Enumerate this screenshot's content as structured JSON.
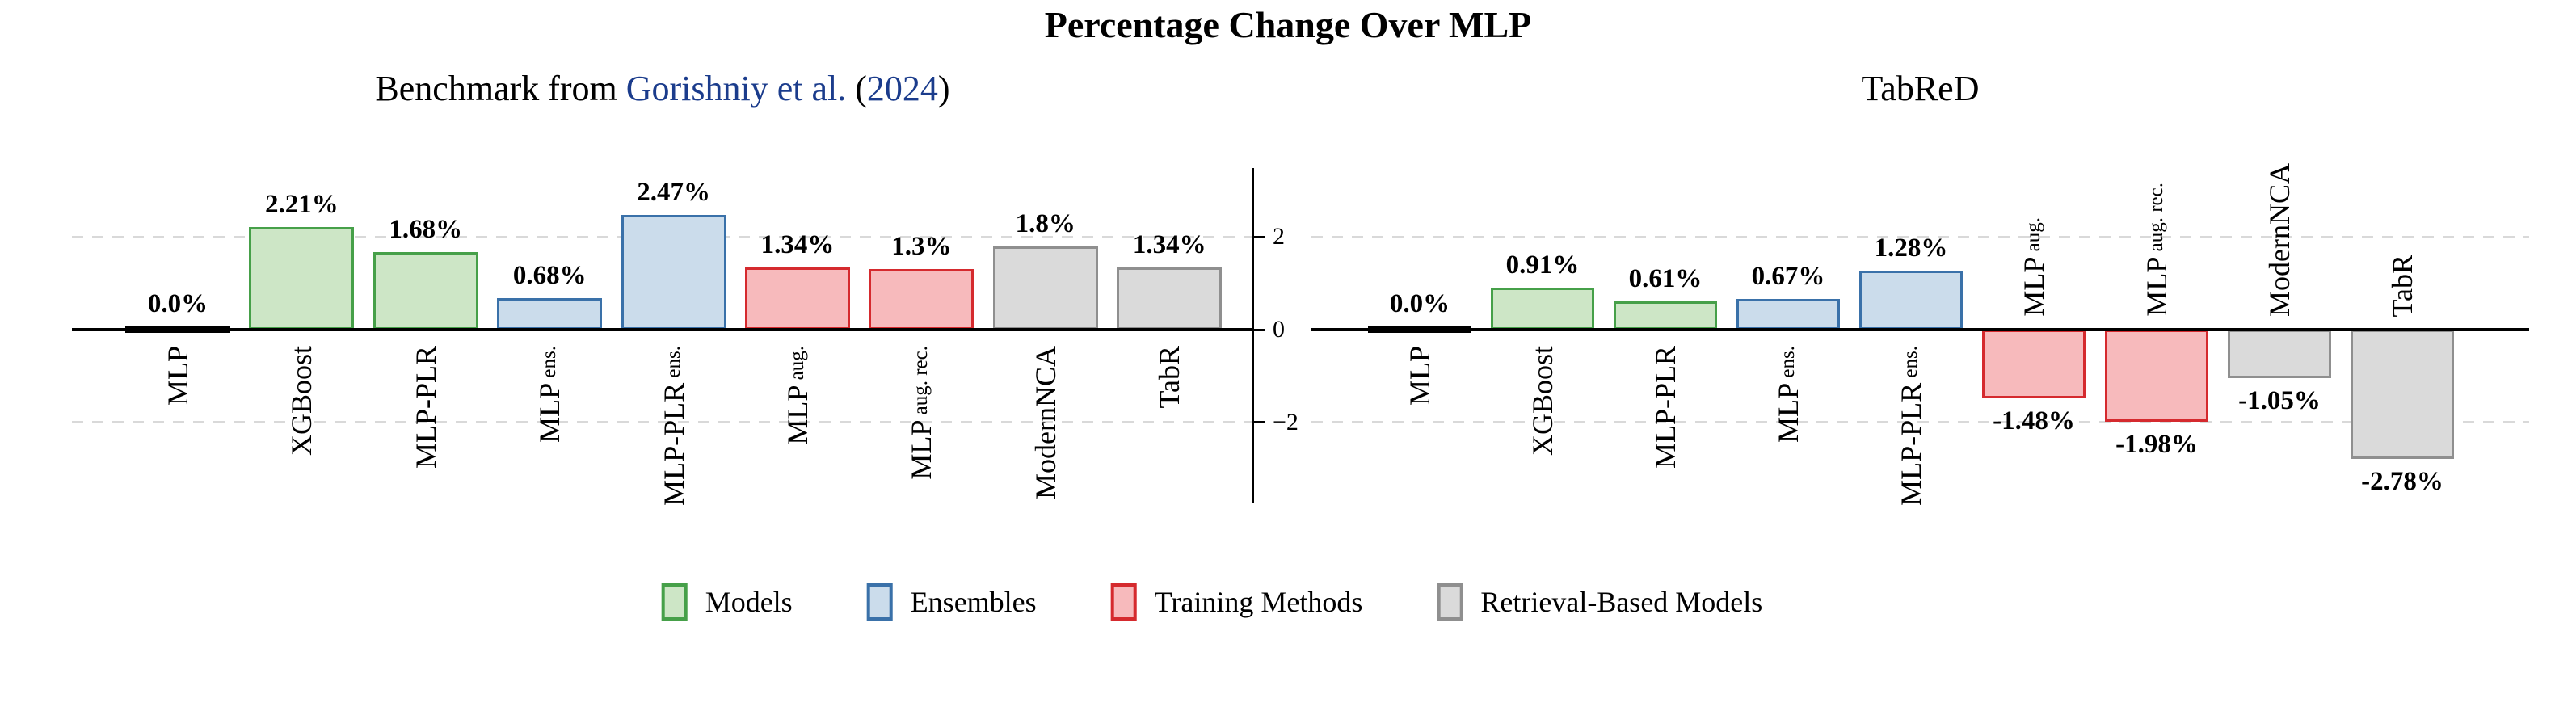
{
  "figure_title": "Percentage Change Over MLP",
  "yaxis": {
    "ticks": [
      {
        "value": 2,
        "label": "2"
      },
      {
        "value": 0,
        "label": "0"
      },
      {
        "value": -2,
        "label": "−2"
      }
    ],
    "gridlines_at": [
      2,
      -2
    ]
  },
  "colors": {
    "baseline_bar": {
      "fill": "#000000",
      "edge": "#000000"
    },
    "models": {
      "fill": "#cde6c6",
      "edge": "#46a049"
    },
    "ensembles": {
      "fill": "#cbdceb",
      "edge": "#3a71a9"
    },
    "training": {
      "fill": "#f7babc",
      "edge": "#d52a2e"
    },
    "retrieval": {
      "fill": "#dadada",
      "edge": "#8f8f8f"
    },
    "citation_link": "#1b3c8c",
    "gridline": "#d9d9d9"
  },
  "legend": {
    "items": [
      {
        "label": "Models",
        "group": "models"
      },
      {
        "label": "Ensembles",
        "group": "ensembles"
      },
      {
        "label": "Training Methods",
        "group": "training"
      },
      {
        "label": "Retrieval-Based Models",
        "group": "retrieval"
      }
    ]
  },
  "chart_data": [
    {
      "type": "bar",
      "title_text": "Benchmark from Gorishniy et al. (2024)",
      "title_parts": [
        {
          "text": "Benchmark from ",
          "style": "plain"
        },
        {
          "text": "Gorishniy et al.",
          "style": "cite"
        },
        {
          "text": " (",
          "style": "plain"
        },
        {
          "text": "2024",
          "style": "cite"
        },
        {
          "text": ")",
          "style": "plain"
        }
      ],
      "categories": [
        {
          "main": "MLP",
          "suffix": ""
        },
        {
          "main": "XGBoost",
          "suffix": ""
        },
        {
          "main": "MLP-PLR",
          "suffix": ""
        },
        {
          "main": "MLP",
          "suffix": "ens."
        },
        {
          "main": "MLP-PLR",
          "suffix": "ens."
        },
        {
          "main": "MLP",
          "suffix": "aug."
        },
        {
          "main": "MLP",
          "suffix": "aug. rec."
        },
        {
          "main": "ModernNCA",
          "suffix": ""
        },
        {
          "main": "TabR",
          "suffix": ""
        }
      ],
      "groups": [
        "baseline_bar",
        "models",
        "models",
        "ensembles",
        "ensembles",
        "training",
        "training",
        "retrieval",
        "retrieval"
      ],
      "values": [
        0.0,
        2.21,
        1.68,
        0.68,
        2.47,
        1.34,
        1.3,
        1.8,
        1.34
      ],
      "bar_labels": [
        "0.0%",
        "2.21%",
        "1.68%",
        "0.68%",
        "2.47%",
        "1.34%",
        "1.3%",
        "1.8%",
        "1.34%"
      ],
      "ylim": [
        -3.7,
        3.5
      ],
      "grid": "dashed horizontal at +2 and -2"
    },
    {
      "type": "bar",
      "title_text": "TabReD",
      "categories": [
        {
          "main": "MLP",
          "suffix": ""
        },
        {
          "main": "XGBoost",
          "suffix": ""
        },
        {
          "main": "MLP-PLR",
          "suffix": ""
        },
        {
          "main": "MLP",
          "suffix": "ens."
        },
        {
          "main": "MLP-PLR",
          "suffix": "ens."
        },
        {
          "main": "MLP",
          "suffix": "aug."
        },
        {
          "main": "MLP",
          "suffix": "aug. rec."
        },
        {
          "main": "ModernNCA",
          "suffix": ""
        },
        {
          "main": "TabR",
          "suffix": ""
        }
      ],
      "groups": [
        "baseline_bar",
        "models",
        "models",
        "ensembles",
        "ensembles",
        "training",
        "training",
        "retrieval",
        "retrieval"
      ],
      "values": [
        0.0,
        0.91,
        0.61,
        0.67,
        1.28,
        -1.48,
        -1.98,
        -1.05,
        -2.78
      ],
      "bar_labels": [
        "0.0%",
        "0.91%",
        "0.61%",
        "0.67%",
        "1.28%",
        "-1.48%",
        "-1.98%",
        "-1.05%",
        "-2.78%"
      ],
      "ylim": [
        -3.7,
        3.5
      ],
      "grid": "dashed horizontal at +2 and -2"
    }
  ]
}
